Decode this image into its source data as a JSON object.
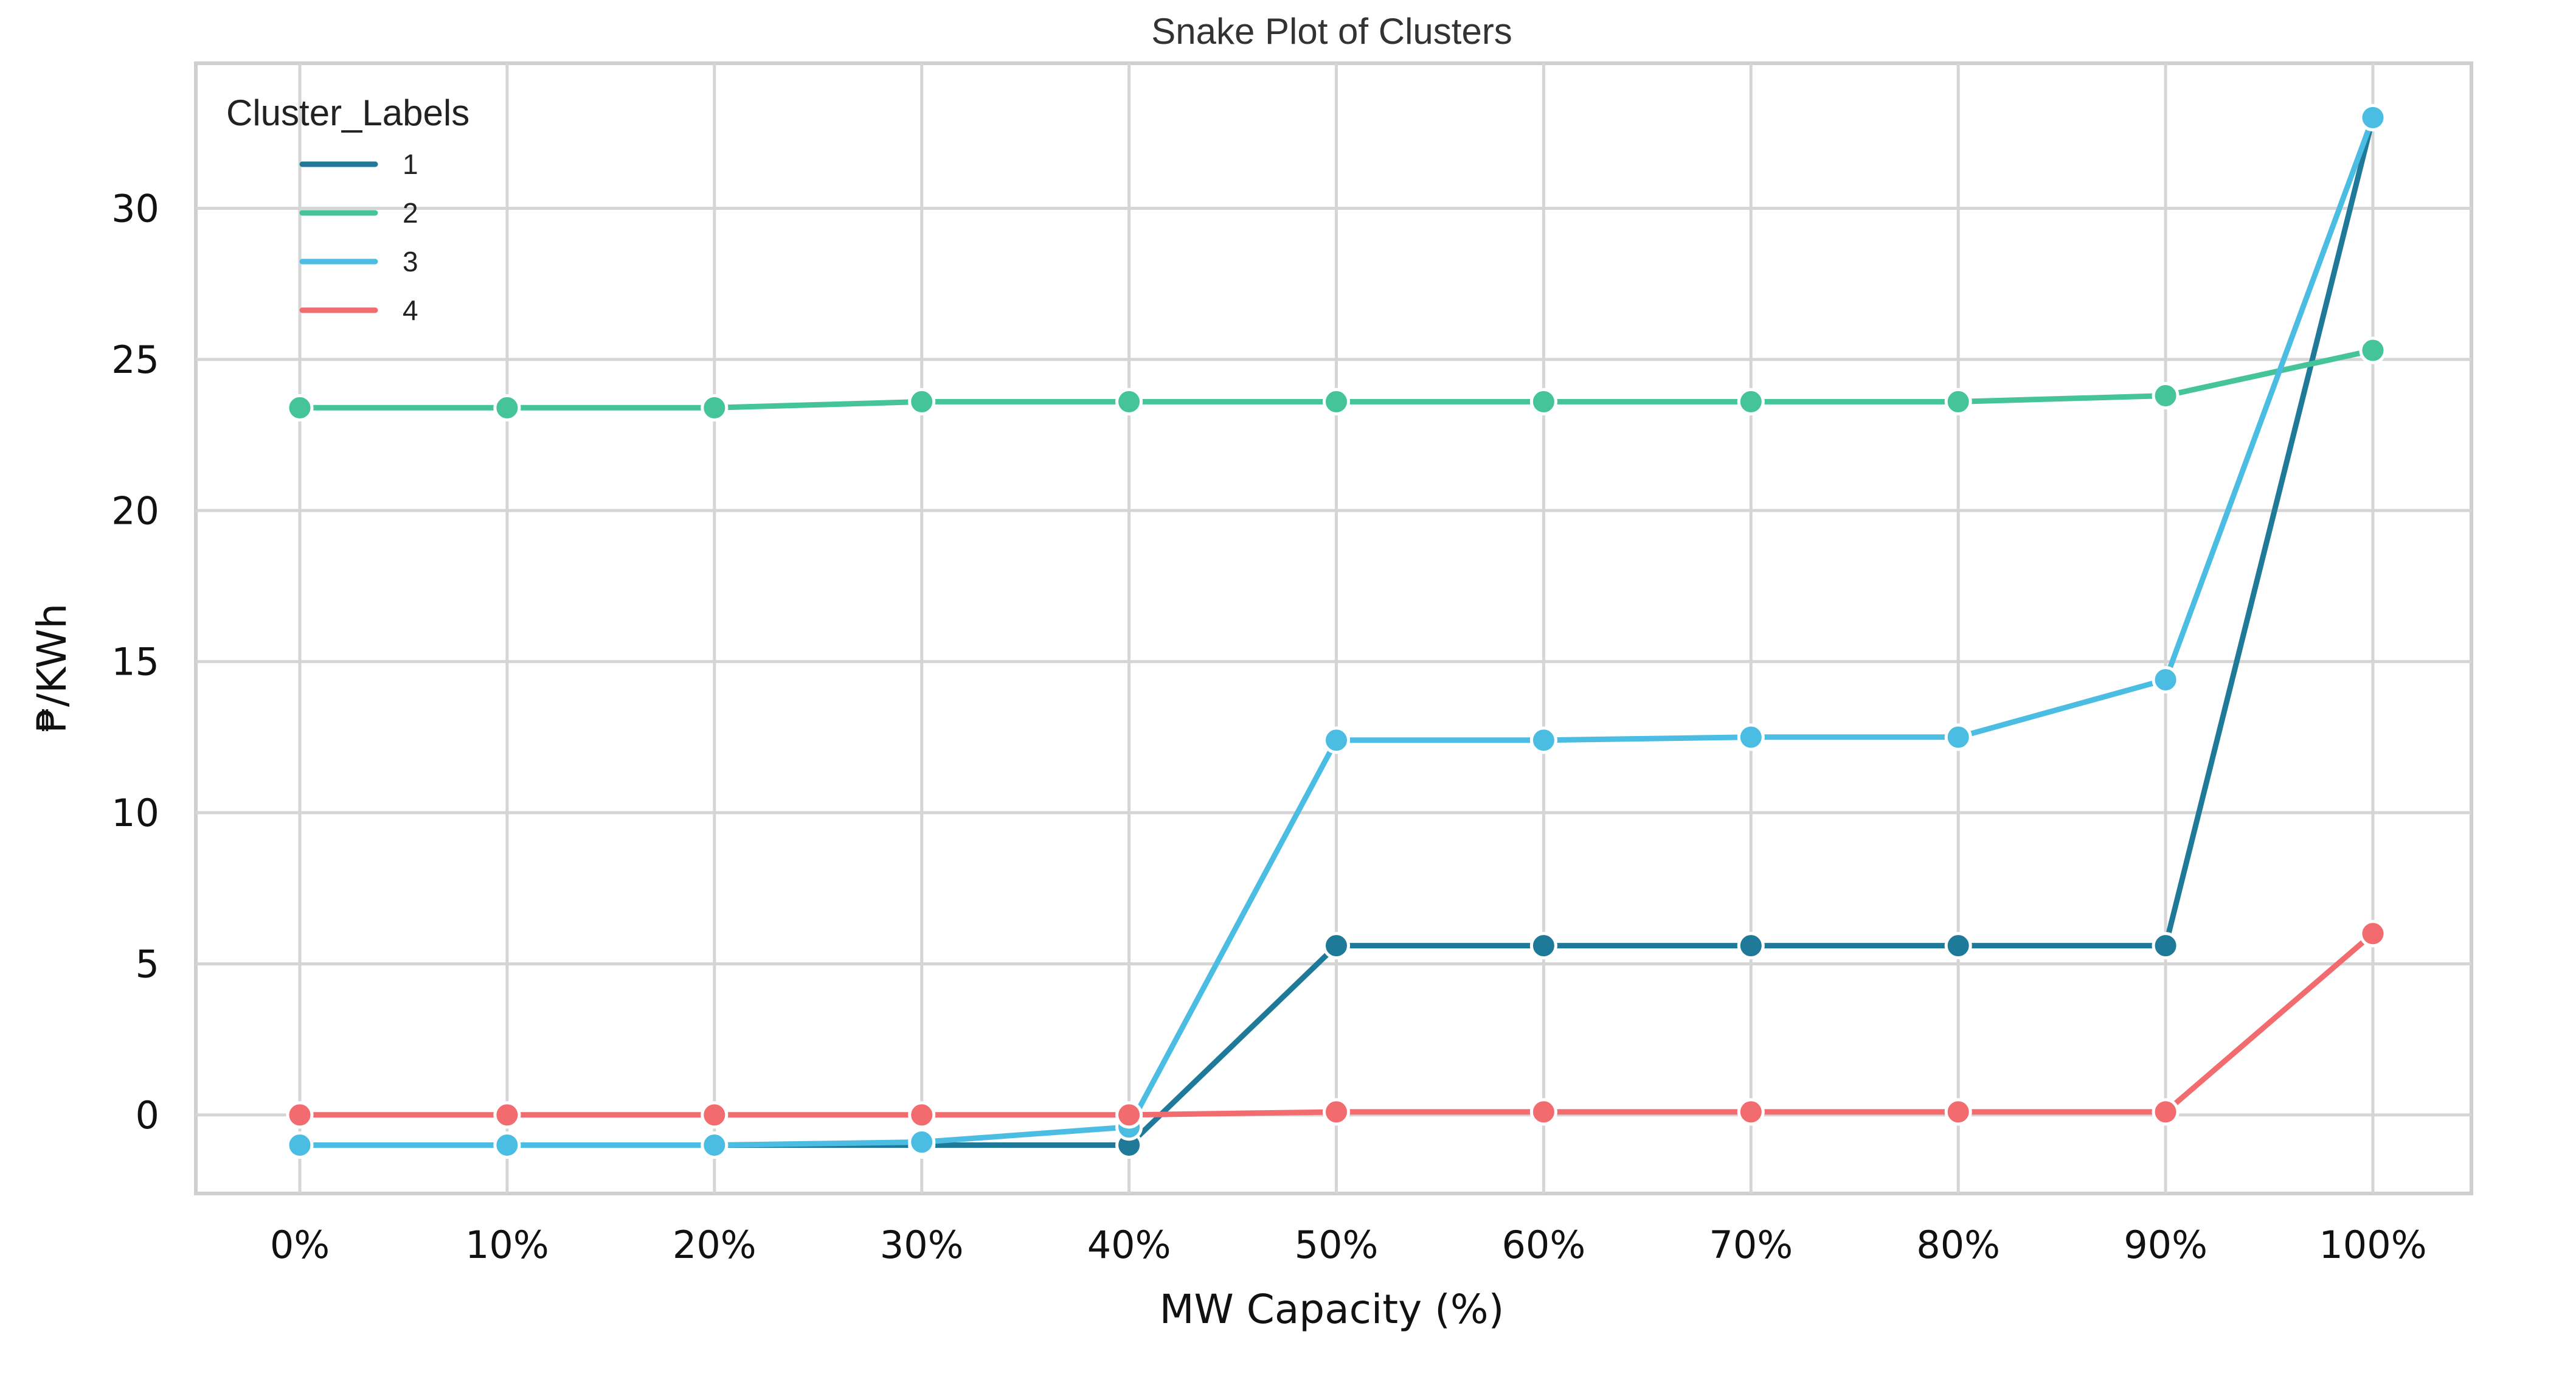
{
  "chart_data": {
    "type": "line",
    "title": "Snake Plot of Clusters",
    "xlabel": "MW Capacity (%)",
    "ylabel": "₱/KWh",
    "categories": [
      "0%",
      "10%",
      "20%",
      "30%",
      "40%",
      "50%",
      "60%",
      "70%",
      "80%",
      "90%",
      "100%"
    ],
    "ylim": [
      -2.6,
      34.8
    ],
    "yticks": [
      0,
      5,
      10,
      15,
      20,
      25,
      30
    ],
    "grid": true,
    "legend": {
      "title": "Cluster_Labels",
      "placement": "top-left"
    },
    "series": [
      {
        "name": "1",
        "color": "#1f7a99",
        "values": [
          -1.0,
          -1.0,
          -1.0,
          -1.0,
          -1.0,
          5.6,
          5.6,
          5.6,
          5.6,
          5.6,
          33.0
        ]
      },
      {
        "name": "2",
        "color": "#45c49a",
        "values": [
          23.4,
          23.4,
          23.4,
          23.6,
          23.6,
          23.6,
          23.6,
          23.6,
          23.6,
          23.8,
          25.3
        ]
      },
      {
        "name": "3",
        "color": "#4bbde3",
        "values": [
          -1.0,
          -1.0,
          -1.0,
          -0.9,
          -0.4,
          12.4,
          12.4,
          12.5,
          12.5,
          14.4,
          33.0
        ]
      },
      {
        "name": "4",
        "color": "#f26b6e",
        "values": [
          0.0,
          0.0,
          0.0,
          0.0,
          0.0,
          0.1,
          0.1,
          0.1,
          0.1,
          0.1,
          6.0
        ]
      }
    ]
  }
}
